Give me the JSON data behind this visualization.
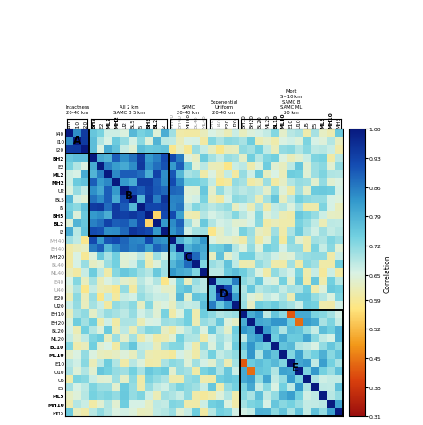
{
  "labels": [
    "I40",
    "I10",
    "I20",
    "BH2",
    "E2",
    "ML2",
    "MH2",
    "U2",
    "BL5",
    "I5",
    "BH5",
    "BL2",
    "I2",
    "MH40",
    "BH40",
    "MH20",
    "BL40",
    "ML40",
    "E40",
    "U40",
    "E20",
    "U20",
    "BH10",
    "BH20",
    "BL20",
    "ML20",
    "BL10",
    "ML10",
    "E10",
    "U10",
    "U5",
    "E5",
    "ML5",
    "MH10",
    "MH5"
  ],
  "colorbar_ticks": [
    1.0,
    0.93,
    0.86,
    0.79,
    0.72,
    0.65,
    0.59,
    0.52,
    0.45,
    0.38,
    0.31
  ],
  "vmin": 0.31,
  "vmax": 1.0,
  "gray_labels": [
    "MH40",
    "BH40",
    "BL40",
    "ML40",
    "E40",
    "U40"
  ],
  "bold_labels": [
    "BH2",
    "ML2",
    "MH2",
    "BL2",
    "BH5",
    "BL10",
    "ML10",
    "ML5",
    "MH10"
  ],
  "group_info": [
    [
      0,
      3,
      "Intactness\n20-40 km"
    ],
    [
      3,
      13,
      "All 2 km\nSAMC B 5 km"
    ],
    [
      13,
      18,
      "SAMC\n20-40 km"
    ],
    [
      18,
      22,
      "Exponential\nUniform\n20-40 km"
    ],
    [
      22,
      35,
      "Most\nS=10 km\nSAMC B\nSAMC ML\n20 km"
    ]
  ],
  "boxes": [
    [
      0,
      0,
      3,
      3,
      "A",
      1.0,
      0.8
    ],
    [
      3,
      3,
      10,
      10,
      "B",
      7.5,
      7.5
    ],
    [
      13,
      13,
      5,
      5,
      "C",
      15.0,
      15.0
    ],
    [
      18,
      18,
      4,
      4,
      "D",
      19.5,
      19.5
    ],
    [
      22,
      22,
      13,
      13,
      "E",
      28.5,
      28.5
    ]
  ]
}
